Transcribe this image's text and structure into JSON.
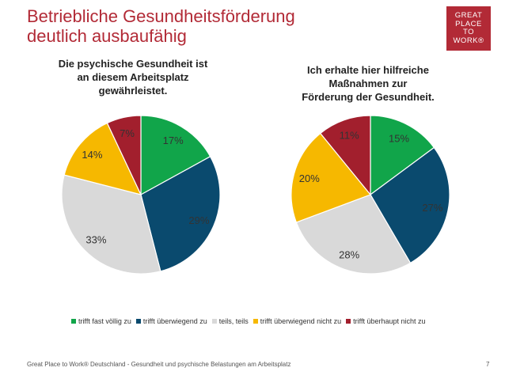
{
  "header": {
    "title_line1": "Betriebliche Gesundheitsförderung",
    "title_line2": "deutlich ausbaufähig",
    "logo_lines": [
      "GREAT",
      "PLACE",
      "TO",
      "WORK®"
    ]
  },
  "chart_data": [
    {
      "type": "pie",
      "title_lines": [
        "Die psychische Gesundheit ist",
        "an diesem Arbeitsplatz",
        "gewährleistet."
      ],
      "categories": [
        "trifft fast völlig zu",
        "trifft überwiegend zu",
        "teils, teils",
        "trifft überwiegend nicht zu",
        "trifft überhaupt nicht zu"
      ],
      "values": [
        17,
        29,
        33,
        14,
        7
      ],
      "labels": [
        "17%",
        "29%",
        "33%",
        "14%",
        "7%"
      ]
    },
    {
      "type": "pie",
      "title_lines": [
        "Ich erhalte hier hilfreiche",
        "Maßnahmen zur",
        "Förderung der Gesundheit."
      ],
      "categories": [
        "trifft fast völlig zu",
        "trifft überwiegend zu",
        "teils, teils",
        "trifft überwiegend nicht zu",
        "trifft überhaupt nicht zu"
      ],
      "values": [
        15,
        27,
        28,
        20,
        11
      ],
      "labels": [
        "15%",
        "27%",
        "28%",
        "20%",
        "11%"
      ]
    }
  ],
  "legend": {
    "placement": "bottom",
    "items": [
      {
        "label": "trifft fast völlig zu",
        "color": "#11a54a"
      },
      {
        "label": "trifft überwiegend zu",
        "color": "#0a4a6e"
      },
      {
        "label": "teils, teils",
        "color": "#d9d9d9"
      },
      {
        "label": "trifft überwiegend nicht zu",
        "color": "#f6b800"
      },
      {
        "label": "trifft überhaupt nicht zu",
        "color": "#a21f2d"
      }
    ]
  },
  "colors": [
    "#11a54a",
    "#0a4a6e",
    "#d9d9d9",
    "#f6b800",
    "#a21f2d"
  ],
  "footer": {
    "text": "Great Place to Work® Deutschland - Gesundheit und psychische Belastungen am Arbeitsplatz",
    "page": "7"
  }
}
